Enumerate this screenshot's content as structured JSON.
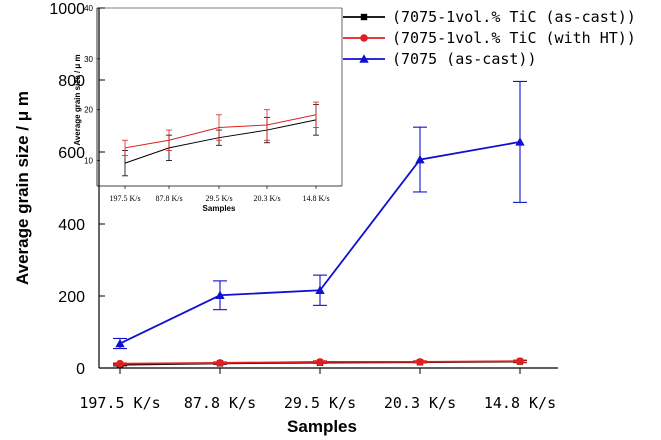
{
  "chart_data": {
    "main": {
      "type": "line",
      "xlabel": "Samples",
      "ylabel": "Average grain size / μ m",
      "categories": [
        "197.5 K/s",
        "87.8 K/s",
        "29.5 K/s",
        "20.3 K/s",
        "14.8 K/s"
      ],
      "ylim": [
        0,
        1000
      ],
      "yticks": [
        0,
        200,
        400,
        600,
        800,
        1000
      ],
      "series": [
        {
          "name": "(7075-1vol.% TiC (as-cast))",
          "color": "#000000",
          "marker": "square",
          "values": [
            9,
            13,
            15,
            16,
            18
          ],
          "errors": [
            3,
            3,
            2,
            2,
            3
          ]
        },
        {
          "name": "(7075-1vol.% TiC (with HT))",
          "color": "#e02020",
          "marker": "circle",
          "values": [
            12,
            14,
            17,
            17,
            19
          ],
          "errors": [
            2,
            3,
            3,
            3,
            3
          ]
        },
        {
          "name": "(7075 (as-cast))",
          "color": "#1010d0",
          "marker": "triangle",
          "values": [
            68,
            202,
            216,
            579,
            628
          ],
          "errors": [
            14,
            40,
            42,
            90,
            168
          ]
        }
      ]
    },
    "inset": {
      "type": "line",
      "xlabel": "Samples",
      "ylabel": "Average grain size / μ m",
      "categories": [
        "197.5 K/s",
        "87.8 K/s",
        "29.5 K/s",
        "20.3 K/s",
        "14.8 K/s"
      ],
      "ylim": [
        5,
        40
      ],
      "yticks": [
        10,
        20,
        30,
        40
      ],
      "series": [
        {
          "name": "(7075-1vol.% TiC (as-cast))",
          "color": "#000000",
          "values": [
            9.5,
            12.5,
            14.5,
            16,
            18
          ],
          "errors": [
            2.5,
            2.5,
            1.5,
            2.5,
            3
          ]
        },
        {
          "name": "(7075-1vol.% TiC (with HT))",
          "color": "#e02020",
          "values": [
            12.5,
            14,
            16.5,
            17,
            19
          ],
          "errors": [
            1.5,
            2,
            2.5,
            3,
            2.5
          ]
        }
      ]
    }
  }
}
